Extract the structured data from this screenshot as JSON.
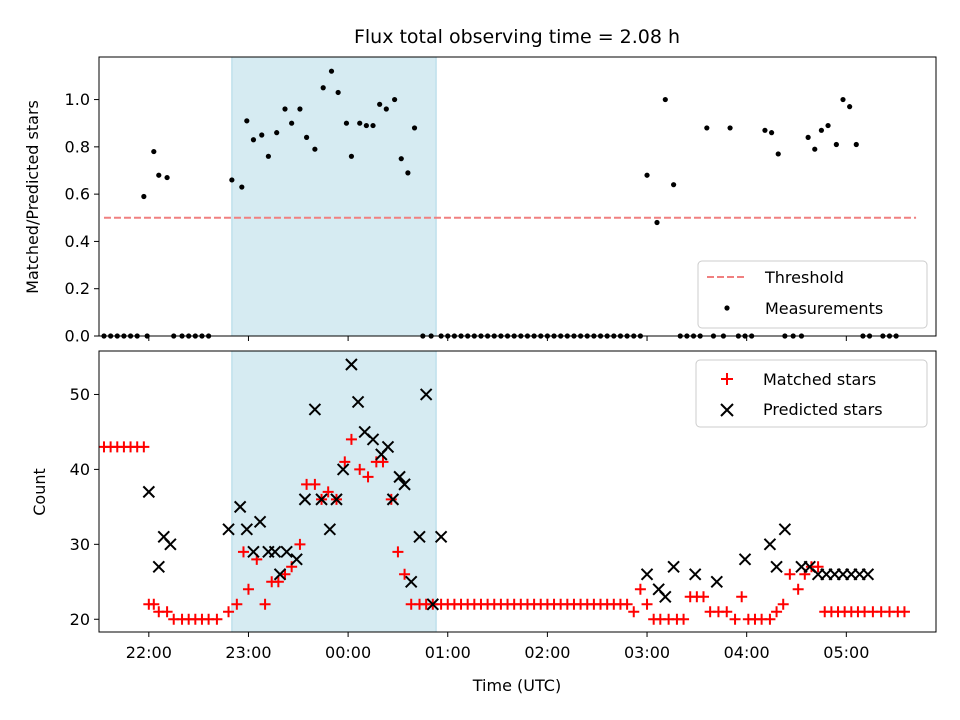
{
  "figure": {
    "title": "Flux total observing time = 2.08 h"
  },
  "colors": {
    "measurement": "#000000",
    "threshold": "#f08080",
    "matched": "#ff0000",
    "predicted": "#000000",
    "highlight": "#add8e6"
  },
  "chart_data": [
    {
      "type": "scatter",
      "panel": "top",
      "ylabel": "Matched/Predicted stars",
      "xlabel": "",
      "xlim": [
        "21:30",
        "05:54"
      ],
      "ylim": [
        0,
        1.18
      ],
      "yticks": [
        0.0,
        0.2,
        0.4,
        0.6,
        0.8,
        1.0
      ],
      "ytick_labels": [
        "0.0",
        "0.2",
        "0.4",
        "0.6",
        "0.8",
        "1.0"
      ],
      "x_tick_times": [
        "22:00",
        "23:00",
        "00:00",
        "01:00",
        "02:00",
        "03:00",
        "04:00",
        "05:00"
      ],
      "highlight_span": [
        "22:50",
        "00:53"
      ],
      "legend": {
        "placement": "lower-right",
        "entries": [
          "Threshold",
          "Measurements"
        ]
      },
      "threshold": {
        "name": "Threshold",
        "value": 0.5,
        "x_range": [
          "21:33",
          "05:42"
        ],
        "style": "dashed"
      },
      "series": [
        {
          "name": "Measurements",
          "marker": "dot",
          "x": [
            "21:33",
            "21:37",
            "21:41",
            "21:45",
            "21:49",
            "21:53",
            "21:57",
            "21:59",
            "22:03",
            "22:06",
            "22:11",
            "22:15",
            "22:20",
            "22:24",
            "22:28",
            "22:32",
            "22:36",
            "22:50",
            "22:56",
            "22:59",
            "23:03",
            "23:08",
            "23:12",
            "23:17",
            "23:22",
            "23:26",
            "23:31",
            "23:35",
            "23:40",
            "23:45",
            "23:50",
            "23:54",
            "23:59",
            "00:02",
            "00:07",
            "00:11",
            "00:15",
            "00:19",
            "00:23",
            "00:28",
            "00:32",
            "00:36",
            "00:40",
            "00:45",
            "00:50",
            "00:56",
            "01:00",
            "01:04",
            "01:08",
            "01:12",
            "01:16",
            "01:20",
            "01:24",
            "01:28",
            "01:32",
            "01:36",
            "01:40",
            "01:44",
            "01:48",
            "01:52",
            "01:56",
            "02:00",
            "02:04",
            "02:08",
            "02:12",
            "02:16",
            "02:20",
            "02:24",
            "02:28",
            "02:32",
            "02:36",
            "02:40",
            "02:44",
            "02:48",
            "02:52",
            "02:56",
            "03:00",
            "03:06",
            "03:11",
            "03:16",
            "03:20",
            "03:24",
            "03:28",
            "03:32",
            "03:36",
            "03:40",
            "03:46",
            "03:50",
            "03:55",
            "03:59",
            "04:03",
            "04:11",
            "04:15",
            "04:19",
            "04:23",
            "04:28",
            "04:33",
            "04:37",
            "04:41",
            "04:45",
            "04:49",
            "04:54",
            "04:58",
            "05:02",
            "05:06",
            "05:10",
            "05:14",
            "05:22",
            "05:26",
            "05:30"
          ],
          "y": [
            0.0,
            0.0,
            0.0,
            0.0,
            0.0,
            0.0,
            0.59,
            0.0,
            0.78,
            0.68,
            0.67,
            0.0,
            0.0,
            0.0,
            0.0,
            0.0,
            0.0,
            0.66,
            0.63,
            0.91,
            0.83,
            0.85,
            0.76,
            0.86,
            0.96,
            0.9,
            0.96,
            0.84,
            0.79,
            1.05,
            1.12,
            1.03,
            0.9,
            0.76,
            0.9,
            0.89,
            0.89,
            0.98,
            0.96,
            1.0,
            0.75,
            0.69,
            0.88,
            0.0,
            0.0,
            0.0,
            0.0,
            0.0,
            0.0,
            0.0,
            0.0,
            0.0,
            0.0,
            0.0,
            0.0,
            0.0,
            0.0,
            0.0,
            0.0,
            0.0,
            0.0,
            0.0,
            0.0,
            0.0,
            0.0,
            0.0,
            0.0,
            0.0,
            0.0,
            0.0,
            0.0,
            0.0,
            0.0,
            0.0,
            0.0,
            0.0,
            0.68,
            0.48,
            1.0,
            0.64,
            0.0,
            0.0,
            0.0,
            0.0,
            0.88,
            0.0,
            0.0,
            0.88,
            0.0,
            0.0,
            0.0,
            0.87,
            0.86,
            0.77,
            0.0,
            0.0,
            0.0,
            0.84,
            0.79,
            0.87,
            0.89,
            0.81,
            1.0,
            0.97,
            0.81,
            0.0,
            0.0,
            0.0,
            0.0,
            0.0
          ]
        }
      ]
    },
    {
      "type": "scatter",
      "panel": "bottom",
      "ylabel": "Count",
      "xlabel": "Time (UTC)",
      "xlim": [
        "21:30",
        "05:54"
      ],
      "ylim": [
        18.3,
        55.8
      ],
      "yticks": [
        20,
        30,
        40,
        50
      ],
      "ytick_labels": [
        "20",
        "30",
        "40",
        "50"
      ],
      "xticks": [
        "22:00",
        "23:00",
        "00:00",
        "01:00",
        "02:00",
        "03:00",
        "04:00",
        "05:00"
      ],
      "highlight_span": [
        "22:50",
        "00:53"
      ],
      "legend": {
        "placement": "upper-right",
        "entries": [
          "Matched stars",
          "Predicted stars"
        ]
      },
      "series": [
        {
          "name": "Matched stars",
          "marker": "plus",
          "x": [
            "21:33",
            "21:37",
            "21:41",
            "21:45",
            "21:49",
            "21:53",
            "21:57",
            "22:00",
            "22:03",
            "22:06",
            "22:11",
            "22:15",
            "22:20",
            "22:24",
            "22:28",
            "22:32",
            "22:36",
            "22:41",
            "22:48",
            "22:53",
            "22:57",
            "23:00",
            "23:05",
            "23:10",
            "23:14",
            "23:18",
            "23:22",
            "23:26",
            "23:31",
            "23:35",
            "23:40",
            "23:44",
            "23:48",
            "23:53",
            "23:58",
            "00:02",
            "00:07",
            "00:12",
            "00:17",
            "00:21",
            "00:26",
            "00:30",
            "00:34",
            "00:38",
            "00:43",
            "00:47",
            "00:51",
            "00:56",
            "01:00",
            "01:04",
            "01:08",
            "01:12",
            "01:16",
            "01:20",
            "01:24",
            "01:28",
            "01:32",
            "01:36",
            "01:40",
            "01:44",
            "01:48",
            "01:52",
            "01:56",
            "02:00",
            "02:04",
            "02:08",
            "02:12",
            "02:16",
            "02:20",
            "02:24",
            "02:28",
            "02:32",
            "02:36",
            "02:40",
            "02:44",
            "02:48",
            "02:52",
            "02:56",
            "03:00",
            "03:04",
            "03:08",
            "03:13",
            "03:18",
            "03:22",
            "03:26",
            "03:30",
            "03:34",
            "03:38",
            "03:43",
            "03:48",
            "03:53",
            "03:57",
            "04:01",
            "04:05",
            "04:09",
            "04:14",
            "04:18",
            "04:22",
            "04:26",
            "04:31",
            "04:35",
            "04:39",
            "04:43",
            "04:47",
            "04:51",
            "04:55",
            "04:59",
            "05:03",
            "05:07",
            "05:11",
            "05:16",
            "05:21",
            "05:26",
            "05:31",
            "05:35"
          ],
          "y": [
            43,
            43,
            43,
            43,
            43,
            43,
            43,
            22,
            22,
            21,
            21,
            20,
            20,
            20,
            20,
            20,
            20,
            20,
            21,
            22,
            29,
            24,
            28,
            22,
            25,
            25,
            26,
            27,
            30,
            38,
            38,
            36,
            37,
            36,
            41,
            44,
            40,
            39,
            41,
            41,
            36,
            29,
            26,
            22,
            22,
            22,
            22,
            22,
            22,
            22,
            22,
            22,
            22,
            22,
            22,
            22,
            22,
            22,
            22,
            22,
            22,
            22,
            22,
            22,
            22,
            22,
            22,
            22,
            22,
            22,
            22,
            22,
            22,
            22,
            22,
            22,
            21,
            24,
            22,
            20,
            20,
            20,
            20,
            20,
            23,
            23,
            23,
            21,
            21,
            21,
            20,
            23,
            20,
            20,
            20,
            20,
            21,
            22,
            26,
            24,
            26,
            27,
            27,
            21,
            21,
            21,
            21,
            21,
            21,
            21,
            21,
            21,
            21,
            21,
            21
          ]
        },
        {
          "name": "Predicted stars",
          "marker": "x",
          "x": [
            "22:00",
            "22:06",
            "22:09",
            "22:13",
            "22:48",
            "22:55",
            "22:59",
            "23:03",
            "23:07",
            "23:12",
            "23:16",
            "23:19",
            "23:23",
            "23:29",
            "23:34",
            "23:40",
            "23:44",
            "23:49",
            "23:53",
            "23:57",
            "00:02",
            "00:06",
            "00:10",
            "00:15",
            "00:20",
            "00:24",
            "00:27",
            "00:31",
            "00:34",
            "00:38",
            "00:43",
            "00:47",
            "00:51",
            "00:56",
            "03:00",
            "03:07",
            "03:11",
            "03:16",
            "03:29",
            "03:42",
            "03:59",
            "04:14",
            "04:18",
            "04:23",
            "04:33",
            "04:38",
            "04:43",
            "04:48",
            "04:53",
            "04:58",
            "05:03",
            "05:08",
            "05:13"
          ],
          "y": [
            37,
            27,
            31,
            30,
            32,
            35,
            32,
            29,
            33,
            29,
            29,
            26,
            29,
            28,
            36,
            48,
            36,
            32,
            36,
            40,
            54,
            49,
            45,
            44,
            42,
            43,
            36,
            39,
            38,
            25,
            31,
            50,
            22,
            31,
            26,
            24,
            23,
            27,
            26,
            25,
            28,
            30,
            27,
            32,
            27,
            27,
            26,
            26,
            26,
            26,
            26,
            26,
            26
          ]
        }
      ]
    }
  ]
}
